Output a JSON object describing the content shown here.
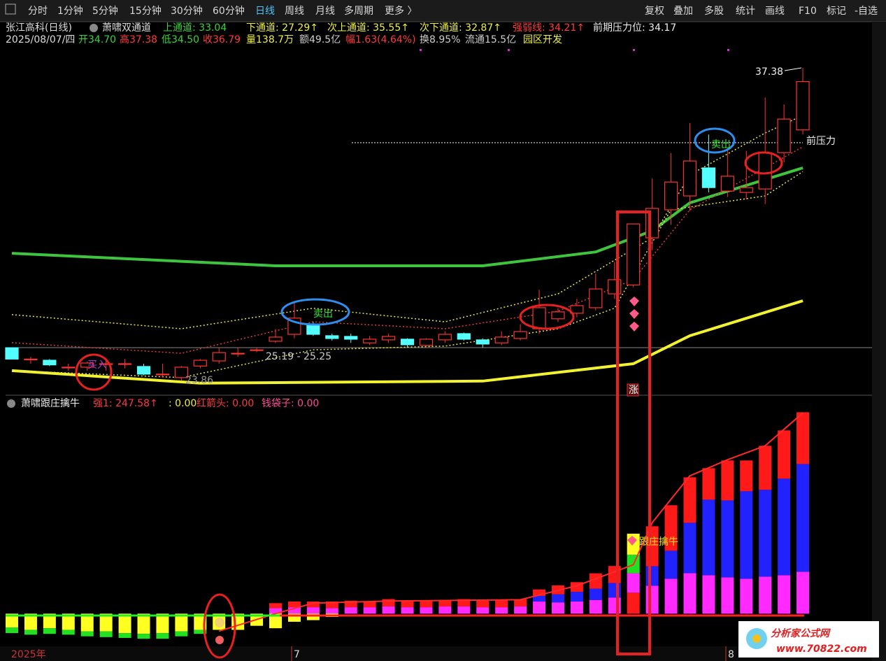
{
  "toolbar": {
    "left": [
      "分时",
      "1分钟",
      "5分钟",
      "15分钟",
      "30分钟",
      "60分钟",
      "日线",
      "周线",
      "月线",
      "多周期",
      "更多 〉"
    ],
    "right": [
      "复权",
      "叠加",
      "多股",
      "统计",
      "画线",
      "F10",
      "标记",
      "-自选"
    ]
  },
  "header": {
    "stock": "张江高科(日线)",
    "indicator": "萧啸双通道",
    "values": [
      "上通道: 33.04",
      "下通道: 27.29↑",
      "次上通道: 35.55↑",
      "次下通道: 32.87↑",
      "强弱线: 34.21↑",
      "前期压力位: 34.17"
    ],
    "date": "2025/08/07/四",
    "quote": [
      "开34.70",
      "高37.38",
      "低34.50",
      "收36.79",
      "量138.7万",
      "额49.5亿",
      "幅1.63(4.64%)",
      "换8.95%",
      "流通15.5亿",
      "园区开发"
    ]
  },
  "annotations": {
    "high": "37.38",
    "pressure": "前压力",
    "sell": [
      "卖出",
      "卖出"
    ],
    "buy": "买入",
    "range": "25.19 - 25.25",
    "low": "23.86",
    "limit_up": "涨",
    "signal": "跟庄擒牛"
  },
  "lower_header": {
    "name": "萧啸跟庄擒牛",
    "values": [
      "强1: 247.58↑",
      ": 0.00",
      "红箭头: 0.00",
      "钱袋子: 0.00"
    ]
  },
  "time_axis": [
    "2025年",
    "7",
    "8"
  ],
  "watermark": {
    "name": "分析家公式网",
    "url": "www.70822.com"
  },
  "chart_data": [
    {
      "type": "candlestick",
      "ylim": [
        23.24,
        38.5
      ],
      "up_color": "#ff3232",
      "down_color": "#54ffff",
      "candles": {
        "open": [
          25.29,
          24.8,
          24.75,
          24.45,
          24.45,
          24.6,
          24.6,
          24.48,
          24.15,
          24.0,
          24.5,
          24.72,
          25.05,
          25.2,
          25.57,
          25.87,
          26.26,
          25.81,
          25.78,
          25.5,
          25.63,
          25.66,
          25.39,
          25.63,
          25.9,
          25.63,
          25.5,
          25.69,
          26.11,
          26.54,
          26.78,
          27.02,
          27.62,
          28.0,
          30.04,
          31.25,
          31.85,
          33.06,
          32.06,
          32.0,
          32.15,
          33.72,
          34.7
        ],
        "close": [
          24.8,
          24.8,
          24.55,
          24.45,
          24.63,
          24.6,
          24.6,
          24.15,
          24.15,
          24.45,
          24.75,
          25.08,
          25.05,
          25.2,
          25.75,
          26.57,
          25.87,
          25.69,
          25.66,
          25.66,
          25.78,
          25.42,
          25.66,
          25.87,
          25.66,
          25.45,
          25.75,
          25.99,
          27.02,
          26.84,
          27.11,
          27.83,
          28.23,
          30.64,
          31.31,
          32.45,
          33.36,
          32.21,
          32.7,
          32.21,
          33.72,
          35.17,
          36.79
        ],
        "high": [
          25.3,
          24.9,
          24.8,
          24.6,
          24.7,
          24.8,
          24.8,
          24.6,
          24.6,
          24.5,
          24.8,
          25.3,
          25.3,
          25.3,
          26.1,
          27.3,
          26.4,
          25.9,
          25.9,
          25.8,
          25.9,
          25.7,
          25.7,
          26.0,
          25.95,
          25.7,
          26.0,
          26.3,
          27.8,
          27.0,
          27.4,
          28.5,
          29.0,
          30.64,
          32.6,
          33.7,
          35.0,
          34.5,
          33.9,
          33.8,
          36.1,
          35.8,
          37.38
        ],
        "low": [
          24.8,
          24.6,
          24.5,
          24.3,
          24.3,
          24.3,
          24.4,
          24.1,
          24.0,
          23.86,
          24.4,
          24.6,
          24.9,
          25.1,
          25.5,
          25.7,
          25.8,
          25.6,
          25.5,
          25.4,
          25.5,
          25.3,
          25.3,
          25.5,
          25.6,
          25.3,
          25.4,
          25.6,
          25.9,
          26.4,
          26.6,
          26.9,
          27.4,
          27.9,
          29.5,
          30.6,
          31.2,
          32.0,
          31.8,
          31.7,
          31.5,
          33.3,
          34.5
        ]
      },
      "lines": [
        {
          "color": "#3ec43e",
          "width": 4,
          "x": [
            0,
            14,
            25,
            31,
            34,
            36,
            42
          ],
          "values": [
            29.37,
            28.83,
            28.83,
            29.43,
            30.34,
            31.55,
            33.06
          ]
        },
        {
          "color": "#f2f230",
          "width": 4,
          "x": [
            0,
            10,
            25,
            33,
            36,
            42
          ],
          "values": [
            24.3,
            23.76,
            23.85,
            24.6,
            25.81,
            27.32
          ]
        },
        {
          "color": "#e6e64a",
          "width": 1.5,
          "dash": true,
          "x": [
            0,
            9,
            16,
            23,
            29,
            34,
            36,
            40,
            42
          ],
          "values": [
            26.72,
            26.11,
            27.0,
            26.41,
            27.62,
            30.04,
            32.76,
            34.57,
            35.33
          ]
        },
        {
          "color": "#e03a3a",
          "width": 1.5,
          "dash": true,
          "x": [
            0,
            9,
            16,
            23,
            29,
            33,
            36,
            40,
            42
          ],
          "values": [
            25.51,
            25.05,
            26.41,
            26.11,
            26.87,
            28.23,
            31.25,
            33.06,
            33.97
          ]
        },
        {
          "color": "#e6e64a",
          "width": 1.5,
          "dash": true,
          "x": [
            0,
            9,
            16,
            23,
            29,
            32,
            35,
            40,
            42
          ],
          "values": [
            24.3,
            24.0,
            25.2,
            25.36,
            26.11,
            27.0,
            31.25,
            31.85,
            32.9
          ]
        }
      ]
    },
    {
      "type": "bar",
      "ylim": [
        -30,
        260
      ],
      "series": [
        {
          "color": "#ff1a1a",
          "values": [
            null,
            null,
            null,
            null,
            null,
            null,
            null,
            null,
            null,
            null,
            null,
            null,
            null,
            null,
            null,
            null,
            null,
            null,
            null,
            null,
            null,
            null,
            null,
            null,
            null,
            null,
            null,
            null,
            null,
            null,
            null,
            null,
            null,
            26,
            null,
            null,
            null,
            null,
            null,
            null,
            null,
            null,
            null
          ]
        },
        {
          "color": "#ff2aff",
          "values": [
            null,
            null,
            null,
            null,
            null,
            null,
            null,
            null,
            null,
            null,
            null,
            null,
            null,
            null,
            7,
            8,
            8,
            7,
            8,
            8,
            9,
            8,
            8,
            9,
            9,
            8,
            8,
            9,
            15,
            14,
            15,
            17,
            20,
            24,
            34.6,
            43.3,
            50.2,
            47.6,
            45.0,
            43.3,
            45.9,
            47.6,
            51.9
          ]
        },
        {
          "color": "#22e022",
          "values": [
            null,
            null,
            null,
            null,
            null,
            null,
            null,
            null,
            null,
            null,
            null,
            null,
            null,
            null,
            null,
            null,
            null,
            null,
            null,
            null,
            null,
            null,
            null,
            null,
            null,
            null,
            null,
            null,
            null,
            null,
            null,
            null,
            null,
            23,
            null,
            null,
            null,
            null,
            null,
            null,
            null,
            null,
            null
          ]
        },
        {
          "color": "#ffff22",
          "values": [
            null,
            null,
            null,
            null,
            null,
            null,
            null,
            null,
            null,
            null,
            null,
            null,
            null,
            null,
            null,
            null,
            null,
            null,
            null,
            null,
            null,
            null,
            null,
            null,
            null,
            null,
            null,
            null,
            null,
            null,
            null,
            null,
            null,
            26,
            null,
            null,
            null,
            null,
            null,
            null,
            null,
            null,
            null
          ]
        },
        {
          "color": "#2222ff",
          "values": [
            null,
            null,
            null,
            null,
            null,
            null,
            null,
            null,
            null,
            null,
            null,
            null,
            null,
            null,
            null,
            null,
            null,
            null,
            null,
            null,
            null,
            null,
            null,
            null,
            null,
            null,
            null,
            null,
            7,
            10,
            12,
            14,
            18,
            null,
            24.2,
            34.6,
            62.3,
            93.5,
            95.2,
            108.2,
            107.4,
            119.5,
            133.3
          ]
        },
        {
          "color": "#ff1a1a",
          "values": [
            null,
            null,
            null,
            null,
            null,
            null,
            null,
            null,
            null,
            null,
            null,
            null,
            null,
            null,
            6,
            7,
            7,
            8,
            8,
            7,
            9,
            8,
            8,
            8,
            9,
            8,
            9,
            9,
            8,
            11,
            12,
            19,
            21,
            null,
            49.4,
            56.3,
            56.3,
            39.0,
            49.4,
            38.1,
            54.5,
            59.7,
            64.1
          ]
        },
        {
          "color": "#ffff22",
          "values": [
            -17,
            -20,
            -18,
            -20,
            -22,
            -22,
            -24,
            -25,
            -24,
            -22,
            -20,
            -20,
            -20,
            -15,
            -18,
            -10,
            -8,
            -4,
            null,
            null,
            null,
            null,
            null,
            null,
            null,
            null,
            null,
            null,
            null,
            null,
            null,
            null,
            null,
            null,
            null,
            null,
            null,
            null,
            null,
            null,
            null,
            null,
            null
          ]
        },
        {
          "color": "#22e022",
          "values": [
            -7,
            -6,
            -7,
            -6,
            -6,
            -7,
            -6,
            -6,
            -7,
            -6,
            -5,
            null,
            null,
            null,
            null,
            null,
            null,
            null,
            null,
            null,
            null,
            null,
            null,
            null,
            null,
            null,
            null,
            null,
            null,
            null,
            null,
            null,
            null,
            null,
            null,
            null,
            null,
            null,
            null,
            null,
            null,
            null,
            null
          ]
        }
      ],
      "lines": [
        {
          "color": "#ff2a2a",
          "width": 2,
          "x": [
            11,
            14,
            16,
            20,
            27,
            30,
            33,
            34,
            36,
            38,
            40,
            42
          ],
          "values": [
            -21.6,
            0,
            13,
            15.6,
            17.3,
            34.6,
            60.6,
            112.6,
            170.6,
            190.5,
            207.8,
            248.5
          ]
        }
      ]
    }
  ]
}
